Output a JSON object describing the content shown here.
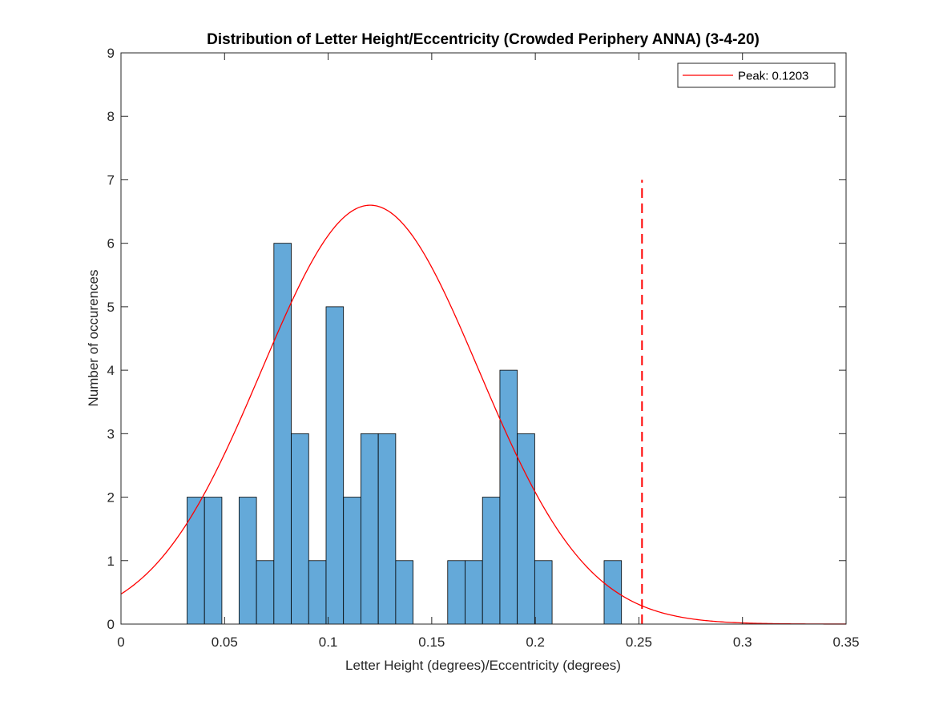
{
  "chart_data": {
    "type": "bar",
    "title": "Distribution of Letter Height/Eccentricity (Crowded Periphery ANNA) (3-4-20)",
    "xlabel": "Letter Height (degrees)/Eccentricity (degrees)",
    "ylabel": "Number of occurences",
    "xlim": [
      0,
      0.35
    ],
    "ylim": [
      0,
      9
    ],
    "xticks": [
      0,
      0.05,
      0.1,
      0.15,
      0.2,
      0.25,
      0.3,
      0.35
    ],
    "xtick_labels": [
      "0",
      "0.05",
      "0.1",
      "0.15",
      "0.2",
      "0.25",
      "0.3",
      "0.35"
    ],
    "yticks": [
      0,
      1,
      2,
      3,
      4,
      5,
      6,
      7,
      8,
      9
    ],
    "ytick_labels": [
      "0",
      "1",
      "2",
      "3",
      "4",
      "5",
      "6",
      "7",
      "8",
      "9"
    ],
    "grid": false,
    "bar_color": "#64a9d9",
    "bin_width": 0.0084,
    "bins": [
      {
        "x0": 0.0319,
        "count": 2
      },
      {
        "x0": 0.0403,
        "count": 2
      },
      {
        "x0": 0.057,
        "count": 2
      },
      {
        "x0": 0.0654,
        "count": 1
      },
      {
        "x0": 0.0738,
        "count": 6
      },
      {
        "x0": 0.0822,
        "count": 3
      },
      {
        "x0": 0.0906,
        "count": 1
      },
      {
        "x0": 0.099,
        "count": 5
      },
      {
        "x0": 0.1074,
        "count": 2
      },
      {
        "x0": 0.1158,
        "count": 3
      },
      {
        "x0": 0.1242,
        "count": 3
      },
      {
        "x0": 0.1326,
        "count": 1
      },
      {
        "x0": 0.1577,
        "count": 1
      },
      {
        "x0": 0.1661,
        "count": 1
      },
      {
        "x0": 0.1745,
        "count": 2
      },
      {
        "x0": 0.1829,
        "count": 4
      },
      {
        "x0": 0.1913,
        "count": 3
      },
      {
        "x0": 0.1997,
        "count": 1
      },
      {
        "x0": 0.2332,
        "count": 1
      }
    ],
    "fit_curve": {
      "type": "normal",
      "name": "Peak: 0.1203",
      "color": "#ff0000",
      "peak_x": 0.1203,
      "peak_y": 6.6,
      "sigma": 0.0524
    },
    "reference_line": {
      "x": 0.2515,
      "y_range": [
        0,
        7
      ],
      "color": "#ff0000",
      "style": "dashed"
    },
    "legend": {
      "position": "top-right",
      "entries": [
        "Peak: 0.1203"
      ]
    }
  }
}
